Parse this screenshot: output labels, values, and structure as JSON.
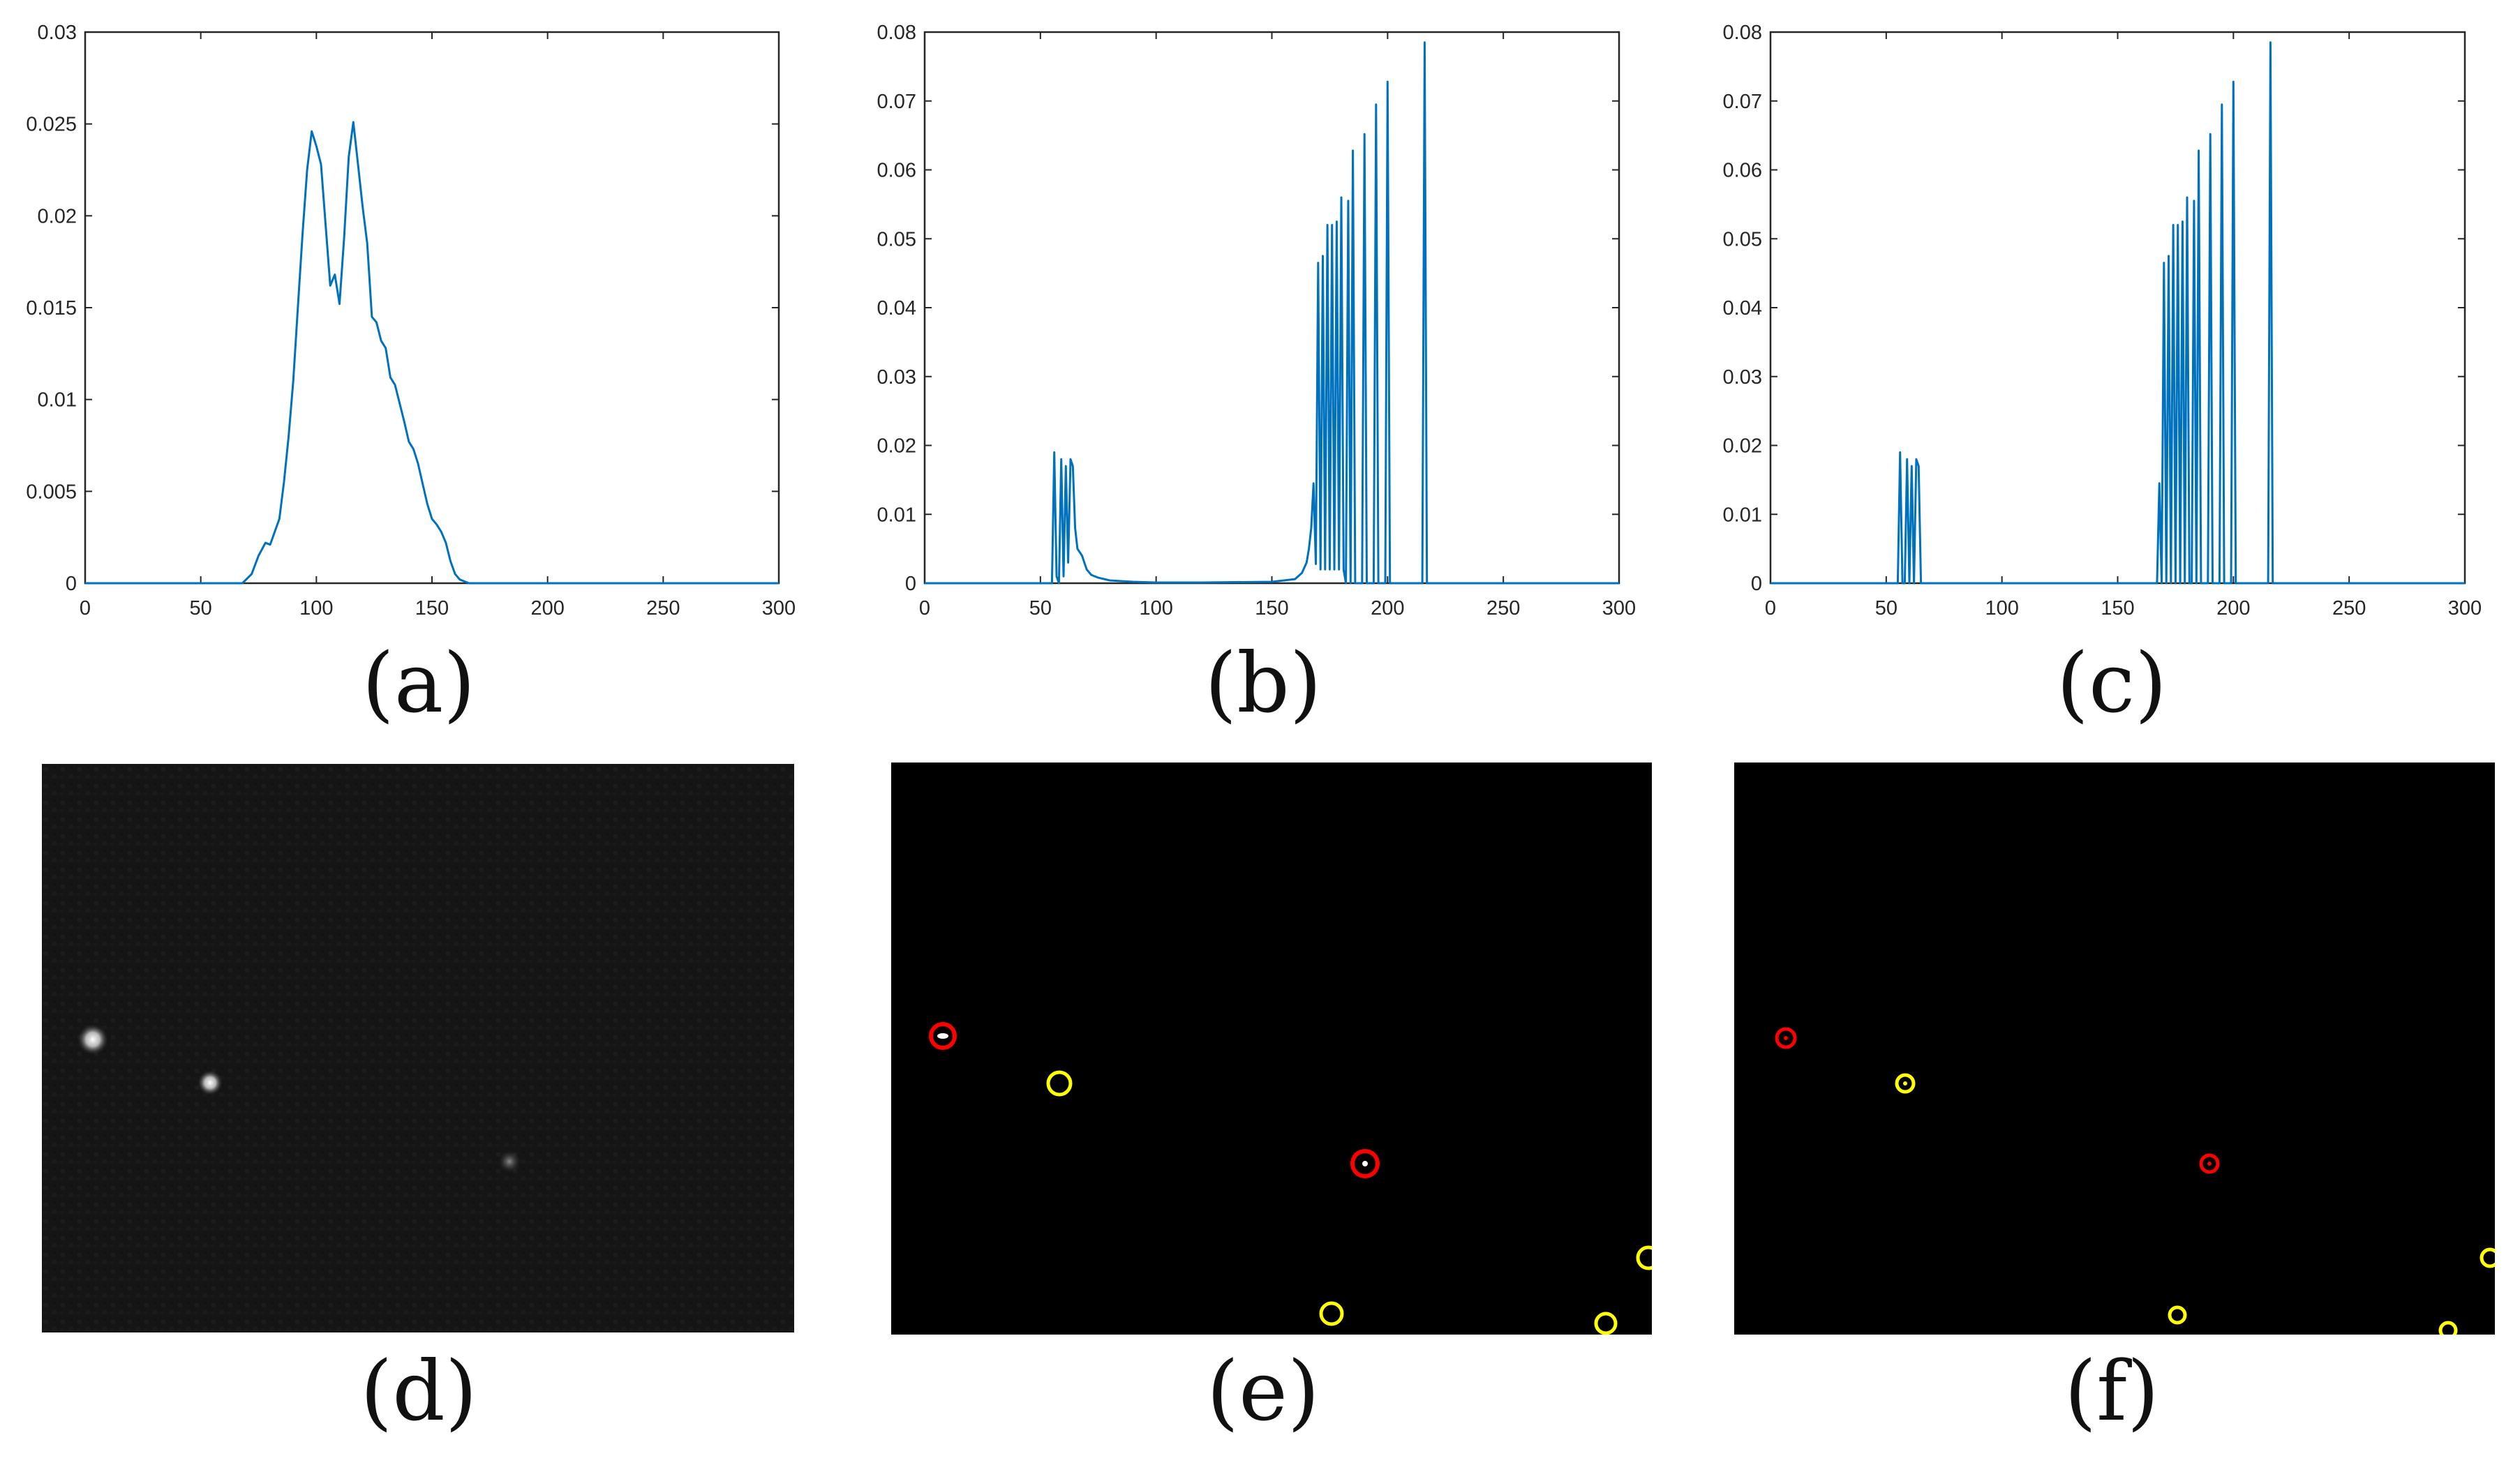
{
  "colors": {
    "line": "#0072bd",
    "axis": "#262626",
    "tick_label": "#262626",
    "red_marker": "#ff0000",
    "yellow_marker": "#ffff00",
    "spot": "#ffffff",
    "dark_background": "#000000",
    "noisy_background": "#141414"
  },
  "chart_data": [
    {
      "id": "a",
      "type": "line",
      "xlim": [
        0,
        300
      ],
      "ylim": [
        0,
        0.03
      ],
      "x_ticks": [
        0,
        50,
        100,
        150,
        200,
        250,
        300
      ],
      "y_ticks": [
        0,
        0.005,
        0.01,
        0.015,
        0.02,
        0.025,
        0.03
      ],
      "x_tick_labels": [
        "0",
        "50",
        "100",
        "150",
        "200",
        "250",
        "300"
      ],
      "y_tick_labels": [
        "0",
        "0.005",
        "0.01",
        "0.015",
        "0.02",
        "0.025",
        "0.03"
      ],
      "grid": false,
      "series": [
        {
          "x": [
            0,
            68,
            72,
            75,
            78,
            80,
            82,
            84,
            86,
            88,
            90,
            92,
            94,
            96,
            98,
            100,
            102,
            104,
            106,
            108,
            110,
            112,
            114,
            116,
            118,
            120,
            122,
            124,
            126,
            128,
            130,
            132,
            134,
            136,
            138,
            140,
            142,
            144,
            146,
            148,
            150,
            152,
            154,
            156,
            158,
            160,
            162,
            164,
            166,
            170,
            300
          ],
          "y": [
            0,
            0,
            0.0005,
            0.0015,
            0.0022,
            0.0021,
            0.0028,
            0.0035,
            0.0055,
            0.008,
            0.011,
            0.015,
            0.019,
            0.0225,
            0.0246,
            0.0238,
            0.0228,
            0.0195,
            0.0162,
            0.0168,
            0.0152,
            0.0188,
            0.0232,
            0.0251,
            0.0228,
            0.0205,
            0.0185,
            0.0145,
            0.0142,
            0.0132,
            0.0128,
            0.0112,
            0.0108,
            0.0098,
            0.0088,
            0.0077,
            0.0073,
            0.0065,
            0.0054,
            0.0043,
            0.0035,
            0.0032,
            0.0028,
            0.0022,
            0.0012,
            0.0005,
            0.0002,
            0.0001,
            0,
            0,
            0
          ]
        }
      ]
    },
    {
      "id": "b",
      "type": "line",
      "xlim": [
        0,
        300
      ],
      "ylim": [
        0,
        0.08
      ],
      "x_ticks": [
        0,
        50,
        100,
        150,
        200,
        250,
        300
      ],
      "y_ticks": [
        0,
        0.01,
        0.02,
        0.03,
        0.04,
        0.05,
        0.06,
        0.07,
        0.08
      ],
      "x_tick_labels": [
        "0",
        "50",
        "100",
        "150",
        "200",
        "250",
        "300"
      ],
      "y_tick_labels": [
        "0",
        "0.01",
        "0.02",
        "0.03",
        "0.04",
        "0.05",
        "0.06",
        "0.07",
        "0.08"
      ],
      "grid": false,
      "series": [
        {
          "x": [
            0,
            55,
            56,
            57,
            58,
            59,
            60,
            61,
            62,
            63,
            64,
            65,
            66,
            67,
            68,
            69,
            70,
            72,
            75,
            80,
            85,
            90,
            100,
            120,
            150,
            160,
            163,
            165,
            166,
            167,
            168,
            169,
            170,
            171,
            172,
            173,
            174,
            175,
            176,
            177,
            178,
            179,
            180,
            181,
            182,
            183,
            184,
            185,
            186,
            187,
            188,
            189,
            190,
            191,
            192,
            193,
            194,
            195,
            196,
            197,
            198,
            199,
            200,
            201,
            202,
            203,
            204,
            215,
            216,
            217,
            218,
            300
          ],
          "y": [
            0,
            0,
            0.019,
            0.001,
            0,
            0.018,
            0.001,
            0.017,
            0.003,
            0.018,
            0.017,
            0.008,
            0.005,
            0.0045,
            0.004,
            0.003,
            0.002,
            0.0012,
            0.0008,
            0.0004,
            0.0003,
            0.0002,
            0.0001,
            0.0001,
            0.0002,
            0.0006,
            0.0015,
            0.003,
            0.005,
            0.008,
            0.0145,
            0.0028,
            0.0465,
            0.002,
            0.0475,
            0.002,
            0.052,
            0.002,
            0.052,
            0.002,
            0.0525,
            0.002,
            0.056,
            0.002,
            0,
            0.0555,
            0,
            0.0628,
            0,
            0,
            0,
            0,
            0.0652,
            0,
            0,
            0,
            0,
            0.0695,
            0,
            0,
            0,
            0,
            0.0728,
            0,
            0,
            0,
            0,
            0,
            0.0785,
            0,
            0,
            0
          ]
        }
      ]
    },
    {
      "id": "c",
      "type": "line",
      "xlim": [
        0,
        300
      ],
      "ylim": [
        0,
        0.08
      ],
      "x_ticks": [
        0,
        50,
        100,
        150,
        200,
        250,
        300
      ],
      "y_ticks": [
        0,
        0.01,
        0.02,
        0.03,
        0.04,
        0.05,
        0.06,
        0.07,
        0.08
      ],
      "x_tick_labels": [
        "0",
        "50",
        "100",
        "150",
        "200",
        "250",
        "300"
      ],
      "y_tick_labels": [
        "0",
        "0.01",
        "0.02",
        "0.03",
        "0.04",
        "0.05",
        "0.06",
        "0.07",
        "0.08"
      ],
      "grid": false,
      "series": [
        {
          "x": [
            0,
            55,
            56,
            57,
            58,
            59,
            60,
            61,
            62,
            63,
            64,
            65,
            66,
            67,
            68,
            167,
            168,
            169,
            170,
            171,
            172,
            173,
            174,
            175,
            176,
            177,
            178,
            179,
            180,
            181,
            182,
            183,
            184,
            185,
            186,
            187,
            188,
            189,
            190,
            191,
            192,
            193,
            194,
            195,
            196,
            197,
            198,
            199,
            200,
            201,
            202,
            203,
            204,
            215,
            216,
            217,
            218,
            300
          ],
          "y": [
            0,
            0,
            0.019,
            0,
            0,
            0.018,
            0,
            0.017,
            0,
            0.018,
            0.017,
            0,
            0,
            0,
            0,
            0,
            0.0145,
            0,
            0.0465,
            0,
            0.0475,
            0,
            0.052,
            0,
            0.052,
            0,
            0.0525,
            0,
            0.056,
            0,
            0,
            0.0555,
            0,
            0.0628,
            0,
            0,
            0,
            0,
            0.0652,
            0,
            0,
            0,
            0,
            0.0695,
            0,
            0,
            0,
            0,
            0.0728,
            0,
            0,
            0,
            0,
            0,
            0.0785,
            0,
            0,
            0
          ]
        }
      ]
    }
  ],
  "panel_labels": {
    "a": "(a)",
    "b": "(b)",
    "c": "(c)",
    "d": "(d)",
    "e": "(e)",
    "f": "(f)"
  }
}
